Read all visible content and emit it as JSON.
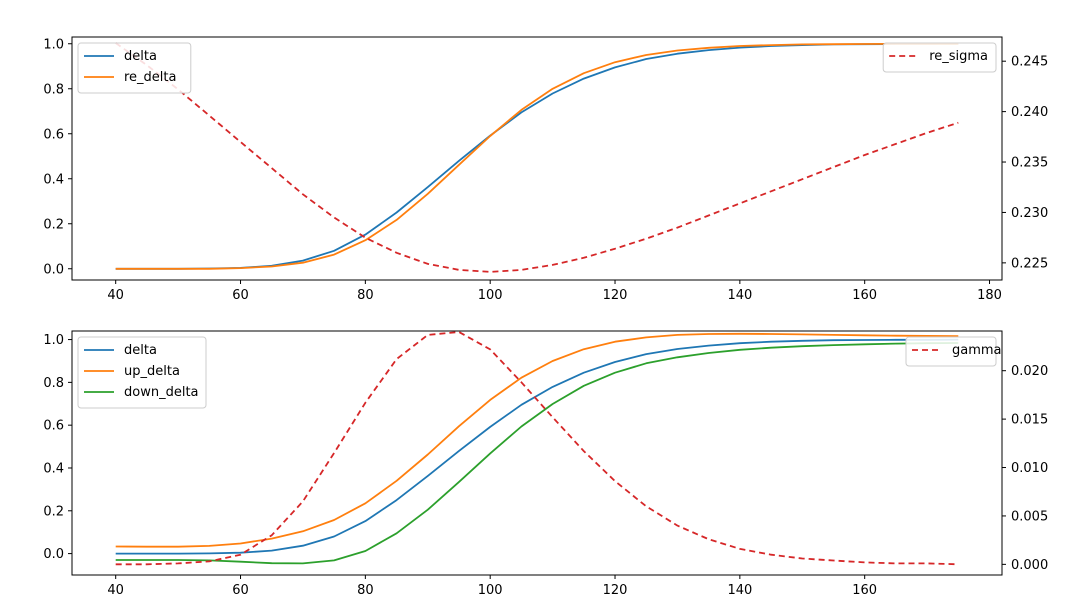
{
  "chart_data": [
    {
      "type": "line",
      "x": [
        40,
        45,
        50,
        55,
        60,
        65,
        70,
        75,
        80,
        85,
        90,
        95,
        100,
        105,
        110,
        115,
        120,
        125,
        130,
        135,
        140,
        145,
        150,
        155,
        160,
        165,
        170,
        175
      ],
      "xlim": [
        33,
        182
      ],
      "xticks": [
        40,
        60,
        80,
        100,
        120,
        140,
        160,
        180
      ],
      "ylim": [
        -0.05,
        1.03
      ],
      "yticks": [
        0.0,
        0.2,
        0.4,
        0.6,
        0.8,
        1.0
      ],
      "y2lim": [
        0.2233,
        0.2474
      ],
      "y2ticks": [
        0.225,
        0.23,
        0.235,
        0.24,
        0.245
      ],
      "series": [
        {
          "name": "delta",
          "axis": "left",
          "color": "#1f77b4",
          "dash": "solid",
          "values": [
            0.0,
            0.0,
            0.0,
            0.001,
            0.004,
            0.013,
            0.036,
            0.08,
            0.152,
            0.25,
            0.363,
            0.48,
            0.592,
            0.695,
            0.779,
            0.845,
            0.895,
            0.932,
            0.956,
            0.972,
            0.983,
            0.99,
            0.994,
            0.997,
            0.998,
            0.999,
            0.999,
            1.0
          ]
        },
        {
          "name": "re_delta",
          "axis": "left",
          "color": "#ff7f0e",
          "dash": "solid",
          "values": [
            0.0,
            0.0,
            0.0,
            0.0,
            0.003,
            0.01,
            0.027,
            0.063,
            0.127,
            0.217,
            0.333,
            0.462,
            0.59,
            0.706,
            0.8,
            0.869,
            0.918,
            0.95,
            0.97,
            0.982,
            0.99,
            0.994,
            0.997,
            0.998,
            0.999,
            1.0,
            1.0,
            1.0
          ]
        },
        {
          "name": "re_sigma",
          "axis": "right",
          "color": "#d62728",
          "dash": "dashed",
          "values": [
            0.2468,
            0.2446,
            0.2422,
            0.2396,
            0.237,
            0.2344,
            0.2318,
            0.2295,
            0.2275,
            0.226,
            0.2249,
            0.2243,
            0.2241,
            0.2243,
            0.2248,
            0.2255,
            0.2264,
            0.2274,
            0.2285,
            0.2297,
            0.2309,
            0.2321,
            0.2333,
            0.2345,
            0.2357,
            0.2368,
            0.2379,
            0.2389
          ]
        }
      ],
      "legends": [
        {
          "position": "upper-left",
          "entries": [
            "delta",
            "re_delta"
          ]
        },
        {
          "position": "upper-right",
          "entries": [
            "re_sigma"
          ]
        }
      ]
    },
    {
      "type": "line",
      "x": [
        40,
        45,
        50,
        55,
        60,
        65,
        70,
        75,
        80,
        85,
        90,
        95,
        100,
        105,
        110,
        115,
        120,
        125,
        130,
        135,
        140,
        145,
        150,
        155,
        160,
        165,
        170,
        175
      ],
      "xlim": [
        33,
        182
      ],
      "xticks": [
        40,
        60,
        80,
        100,
        120,
        140,
        160
      ],
      "ylim": [
        -0.1,
        1.04
      ],
      "yticks": [
        0.0,
        0.2,
        0.4,
        0.6,
        0.8,
        1.0
      ],
      "y2lim": [
        -0.0011,
        0.0241
      ],
      "y2ticks": [
        0.0,
        0.005,
        0.01,
        0.015,
        0.02
      ],
      "series": [
        {
          "name": "delta",
          "axis": "left",
          "color": "#1f77b4",
          "dash": "solid",
          "values": [
            0.0,
            0.0,
            0.0,
            0.001,
            0.004,
            0.014,
            0.037,
            0.08,
            0.152,
            0.25,
            0.363,
            0.48,
            0.592,
            0.695,
            0.779,
            0.845,
            0.895,
            0.932,
            0.956,
            0.972,
            0.983,
            0.99,
            0.994,
            0.997,
            0.998,
            0.999,
            0.999,
            1.0
          ]
        },
        {
          "name": "up_delta",
          "axis": "left",
          "color": "#ff7f0e",
          "dash": "solid",
          "values": [
            0.033,
            0.032,
            0.032,
            0.036,
            0.047,
            0.07,
            0.104,
            0.157,
            0.235,
            0.34,
            0.463,
            0.595,
            0.718,
            0.822,
            0.9,
            0.955,
            0.99,
            1.01,
            1.022,
            1.026,
            1.027,
            1.026,
            1.024,
            1.022,
            1.02,
            1.018,
            1.017,
            1.016
          ]
        },
        {
          "name": "down_delta",
          "axis": "left",
          "color": "#2ca02c",
          "dash": "solid",
          "values": [
            -0.03,
            -0.03,
            -0.03,
            -0.032,
            -0.038,
            -0.045,
            -0.046,
            -0.032,
            0.012,
            0.095,
            0.205,
            0.335,
            0.468,
            0.594,
            0.699,
            0.784,
            0.845,
            0.889,
            0.917,
            0.937,
            0.952,
            0.962,
            0.969,
            0.974,
            0.978,
            0.981,
            0.983,
            0.984
          ]
        },
        {
          "name": "gamma",
          "axis": "right",
          "color": "#d62728",
          "dash": "dashed",
          "values": [
            0.0,
            0.0,
            0.0001,
            0.0003,
            0.001,
            0.003,
            0.0065,
            0.0115,
            0.0167,
            0.0212,
            0.0237,
            0.024,
            0.0222,
            0.0188,
            0.0152,
            0.0117,
            0.0086,
            0.006,
            0.004,
            0.0026,
            0.0016,
            0.001,
            0.0006,
            0.0004,
            0.0002,
            0.0001,
            0.0001,
            0.0
          ]
        }
      ],
      "legends": [
        {
          "position": "upper-left",
          "entries": [
            "delta",
            "up_delta",
            "down_delta"
          ]
        },
        {
          "position": "upper-right",
          "entries": [
            "gamma"
          ]
        }
      ]
    }
  ]
}
